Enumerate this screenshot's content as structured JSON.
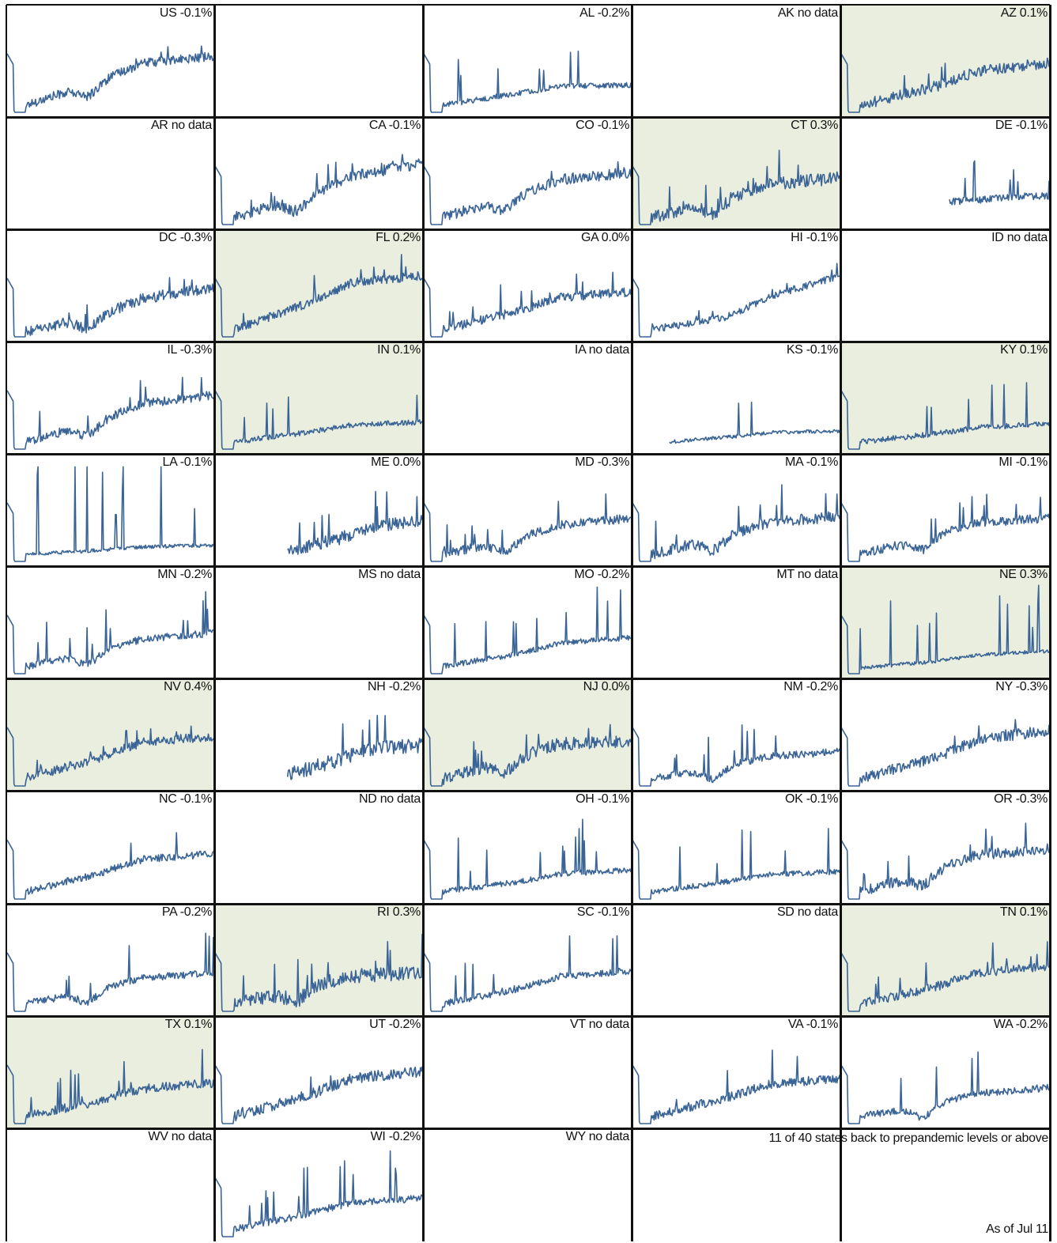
{
  "colors": {
    "line": "#3a6496",
    "highlight": "#eaeedf",
    "grid": "#111111",
    "background": "#ffffff"
  },
  "summary": "11 of 40 states back to prepandemic levels or above",
  "as_of": "As of Jul 11",
  "chart_data": {
    "type": "line",
    "layout": "small-multiples",
    "columns": 5,
    "shape_note": "Each panel is a daily index series; no axes are printed. Panel label shows state and latest change.",
    "panels": [
      {
        "label": "US -0.1%",
        "state": "US",
        "change": -0.1,
        "has_data": true,
        "highlight": false,
        "start": 0.0,
        "drop": 0.08,
        "mid": 0.5,
        "end": 0.62,
        "noise": 0.05,
        "spike": 0.12,
        "dip": true
      },
      {
        "label": "",
        "state": "",
        "change": null,
        "has_data": false,
        "highlight": false
      },
      {
        "label": "AL -0.2%",
        "state": "AL",
        "change": -0.2,
        "has_data": true,
        "highlight": false,
        "start": 0.0,
        "drop": 0.08,
        "mid": 0.28,
        "end": 0.3,
        "noise": 0.03,
        "spike": 0.35,
        "dip": false
      },
      {
        "label": "AK no data",
        "state": "AK",
        "change": null,
        "has_data": false,
        "highlight": false
      },
      {
        "label": "AZ 0.1%",
        "state": "AZ",
        "change": 0.1,
        "has_data": true,
        "highlight": true,
        "start": 0.0,
        "drop": 0.08,
        "mid": 0.4,
        "end": 0.55,
        "noise": 0.06,
        "spike": 0.2,
        "dip": false
      },
      {
        "label": "AR no data",
        "state": "AR",
        "change": null,
        "has_data": false,
        "highlight": false
      },
      {
        "label": "CA -0.1%",
        "state": "CA",
        "change": -0.1,
        "has_data": true,
        "highlight": false,
        "start": 0.0,
        "drop": 0.08,
        "mid": 0.45,
        "end": 0.68,
        "noise": 0.06,
        "spike": 0.15,
        "dip": true
      },
      {
        "label": "CO -0.1%",
        "state": "CO",
        "change": -0.1,
        "has_data": true,
        "highlight": false,
        "start": 0.0,
        "drop": 0.08,
        "mid": 0.45,
        "end": 0.58,
        "noise": 0.06,
        "spike": 0.15,
        "dip": true
      },
      {
        "label": "CT 0.3%",
        "state": "CT",
        "change": 0.3,
        "has_data": true,
        "highlight": true,
        "start": 0.0,
        "drop": 0.08,
        "mid": 0.4,
        "end": 0.52,
        "noise": 0.07,
        "spike": 0.2,
        "dip": true
      },
      {
        "label": "DE -0.1%",
        "state": "DE",
        "change": -0.1,
        "has_data": true,
        "highlight": false,
        "start": 0.52,
        "drop": 0.25,
        "mid": 0.3,
        "end": 0.32,
        "noise": 0.04,
        "spike": 0.3,
        "dip": false
      },
      {
        "label": "DC -0.3%",
        "state": "DC",
        "change": -0.3,
        "has_data": true,
        "highlight": false,
        "start": 0.0,
        "drop": 0.06,
        "mid": 0.35,
        "end": 0.55,
        "noise": 0.06,
        "spike": 0.15,
        "dip": true
      },
      {
        "label": "FL 0.2%",
        "state": "FL",
        "change": 0.2,
        "has_data": true,
        "highlight": true,
        "start": 0.0,
        "drop": 0.08,
        "mid": 0.55,
        "end": 0.68,
        "noise": 0.05,
        "spike": 0.2,
        "dip": false
      },
      {
        "label": "GA 0.0%",
        "state": "GA",
        "change": 0.0,
        "has_data": true,
        "highlight": false,
        "start": 0.0,
        "drop": 0.08,
        "mid": 0.4,
        "end": 0.5,
        "noise": 0.05,
        "spike": 0.25,
        "dip": false
      },
      {
        "label": "HI -0.1%",
        "state": "HI",
        "change": -0.1,
        "has_data": true,
        "highlight": false,
        "start": 0.0,
        "drop": 0.08,
        "mid": 0.3,
        "end": 0.68,
        "noise": 0.04,
        "spike": 0.1,
        "dip": false
      },
      {
        "label": "ID no data",
        "state": "ID",
        "change": null,
        "has_data": false,
        "highlight": false
      },
      {
        "label": "IL -0.3%",
        "state": "IL",
        "change": -0.3,
        "has_data": true,
        "highlight": false,
        "start": 0.0,
        "drop": 0.08,
        "mid": 0.45,
        "end": 0.6,
        "noise": 0.05,
        "spike": 0.2,
        "dip": true
      },
      {
        "label": "IN 0.1%",
        "state": "IN",
        "change": 0.1,
        "has_data": true,
        "highlight": true,
        "start": 0.0,
        "drop": 0.08,
        "mid": 0.25,
        "end": 0.3,
        "noise": 0.03,
        "spike": 0.3,
        "dip": false
      },
      {
        "label": "IA no data",
        "state": "IA",
        "change": null,
        "has_data": false,
        "highlight": false
      },
      {
        "label": "KS -0.1%",
        "state": "KS",
        "change": -0.1,
        "has_data": true,
        "highlight": false,
        "start": 0.18,
        "drop": 0.08,
        "mid": 0.18,
        "end": 0.2,
        "noise": 0.02,
        "spike": 0.5,
        "dip": false
      },
      {
        "label": "KY 0.1%",
        "state": "KY",
        "change": 0.1,
        "has_data": true,
        "highlight": true,
        "start": 0.0,
        "drop": 0.08,
        "mid": 0.22,
        "end": 0.28,
        "noise": 0.03,
        "spike": 0.4,
        "dip": false
      },
      {
        "label": "LA -0.1%",
        "state": "LA",
        "change": -0.1,
        "has_data": true,
        "highlight": false,
        "start": 0.0,
        "drop": 0.08,
        "mid": 0.15,
        "end": 0.18,
        "noise": 0.02,
        "spike": 0.7,
        "dip": false
      },
      {
        "label": "ME 0.0%",
        "state": "ME",
        "change": 0.0,
        "has_data": true,
        "highlight": false,
        "start": 0.35,
        "drop": 0.1,
        "mid": 0.35,
        "end": 0.45,
        "noise": 0.07,
        "spike": 0.3,
        "dip": false
      },
      {
        "label": "MD -0.3%",
        "state": "MD",
        "change": -0.3,
        "has_data": true,
        "highlight": false,
        "start": 0.0,
        "drop": 0.08,
        "mid": 0.35,
        "end": 0.48,
        "noise": 0.05,
        "spike": 0.2,
        "dip": true
      },
      {
        "label": "MA -0.1%",
        "state": "MA",
        "change": -0.1,
        "has_data": true,
        "highlight": false,
        "start": 0.0,
        "drop": 0.08,
        "mid": 0.4,
        "end": 0.5,
        "noise": 0.06,
        "spike": 0.25,
        "dip": true
      },
      {
        "label": "MI -0.1%",
        "state": "MI",
        "change": -0.1,
        "has_data": true,
        "highlight": false,
        "start": 0.0,
        "drop": 0.08,
        "mid": 0.4,
        "end": 0.48,
        "noise": 0.05,
        "spike": 0.2,
        "dip": true
      },
      {
        "label": "MN -0.2%",
        "state": "MN",
        "change": -0.2,
        "has_data": true,
        "highlight": false,
        "start": 0.0,
        "drop": 0.08,
        "mid": 0.35,
        "end": 0.45,
        "noise": 0.04,
        "spike": 0.3,
        "dip": true
      },
      {
        "label": "MS no data",
        "state": "MS",
        "change": null,
        "has_data": false,
        "highlight": false
      },
      {
        "label": "MO -0.2%",
        "state": "MO",
        "change": -0.2,
        "has_data": true,
        "highlight": false,
        "start": 0.0,
        "drop": 0.08,
        "mid": 0.3,
        "end": 0.4,
        "noise": 0.03,
        "spike": 0.4,
        "dip": false
      },
      {
        "label": "MT no data",
        "state": "MT",
        "change": null,
        "has_data": false,
        "highlight": false
      },
      {
        "label": "NE 0.3%",
        "state": "NE",
        "change": 0.3,
        "has_data": true,
        "highlight": true,
        "start": 0.0,
        "drop": 0.06,
        "mid": 0.18,
        "end": 0.25,
        "noise": 0.02,
        "spike": 0.5,
        "dip": false
      },
      {
        "label": "NV 0.4%",
        "state": "NV",
        "change": 0.4,
        "has_data": true,
        "highlight": true,
        "start": 0.0,
        "drop": 0.08,
        "mid": 0.45,
        "end": 0.55,
        "noise": 0.05,
        "spike": 0.15,
        "dip": false
      },
      {
        "label": "NH -0.2%",
        "state": "NH",
        "change": -0.2,
        "has_data": true,
        "highlight": false,
        "start": 0.35,
        "drop": 0.12,
        "mid": 0.4,
        "end": 0.45,
        "noise": 0.08,
        "spike": 0.3,
        "dip": false
      },
      {
        "label": "NJ 0.0%",
        "state": "NJ",
        "change": 0.0,
        "has_data": true,
        "highlight": true,
        "start": 0.0,
        "drop": 0.08,
        "mid": 0.45,
        "end": 0.5,
        "noise": 0.07,
        "spike": 0.25,
        "dip": true
      },
      {
        "label": "NM -0.2%",
        "state": "NM",
        "change": -0.2,
        "has_data": true,
        "highlight": false,
        "start": 0.0,
        "drop": 0.08,
        "mid": 0.3,
        "end": 0.38,
        "noise": 0.04,
        "spike": 0.3,
        "dip": true
      },
      {
        "label": "NY -0.3%",
        "state": "NY",
        "change": -0.3,
        "has_data": true,
        "highlight": false,
        "start": 0.0,
        "drop": 0.08,
        "mid": 0.45,
        "end": 0.62,
        "noise": 0.06,
        "spike": 0.15,
        "dip": false
      },
      {
        "label": "NC -0.1%",
        "state": "NC",
        "change": -0.1,
        "has_data": true,
        "highlight": false,
        "start": 0.0,
        "drop": 0.08,
        "mid": 0.4,
        "end": 0.5,
        "noise": 0.04,
        "spike": 0.3,
        "dip": false
      },
      {
        "label": "ND no data",
        "state": "ND",
        "change": null,
        "has_data": false,
        "highlight": false
      },
      {
        "label": "OH -0.1%",
        "state": "OH",
        "change": -0.1,
        "has_data": true,
        "highlight": false,
        "start": 0.0,
        "drop": 0.08,
        "mid": 0.25,
        "end": 0.32,
        "noise": 0.03,
        "spike": 0.4,
        "dip": false
      },
      {
        "label": "OK -0.1%",
        "state": "OK",
        "change": -0.1,
        "has_data": true,
        "highlight": false,
        "start": 0.0,
        "drop": 0.08,
        "mid": 0.25,
        "end": 0.3,
        "noise": 0.03,
        "spike": 0.4,
        "dip": false
      },
      {
        "label": "OR -0.3%",
        "state": "OR",
        "change": -0.3,
        "has_data": true,
        "highlight": false,
        "start": 0.0,
        "drop": 0.08,
        "mid": 0.45,
        "end": 0.55,
        "noise": 0.06,
        "spike": 0.2,
        "dip": true
      },
      {
        "label": "PA -0.2%",
        "state": "PA",
        "change": -0.2,
        "has_data": true,
        "highlight": false,
        "start": 0.0,
        "drop": 0.08,
        "mid": 0.35,
        "end": 0.42,
        "noise": 0.04,
        "spike": 0.3,
        "dip": true
      },
      {
        "label": "RI 0.3%",
        "state": "RI",
        "change": 0.3,
        "has_data": true,
        "highlight": true,
        "start": 0.0,
        "drop": 0.08,
        "mid": 0.38,
        "end": 0.42,
        "noise": 0.08,
        "spike": 0.3,
        "dip": true
      },
      {
        "label": "SC -0.1%",
        "state": "SC",
        "change": -0.1,
        "has_data": true,
        "highlight": false,
        "start": 0.0,
        "drop": 0.08,
        "mid": 0.35,
        "end": 0.45,
        "noise": 0.04,
        "spike": 0.3,
        "dip": false
      },
      {
        "label": "SD no data",
        "state": "SD",
        "change": null,
        "has_data": false,
        "highlight": false
      },
      {
        "label": "TN 0.1%",
        "state": "TN",
        "change": 0.1,
        "has_data": true,
        "highlight": true,
        "start": 0.0,
        "drop": 0.08,
        "mid": 0.38,
        "end": 0.5,
        "noise": 0.05,
        "spike": 0.2,
        "dip": false
      },
      {
        "label": "TX 0.1%",
        "state": "TX",
        "change": 0.1,
        "has_data": true,
        "highlight": true,
        "start": 0.0,
        "drop": 0.08,
        "mid": 0.35,
        "end": 0.45,
        "noise": 0.05,
        "spike": 0.25,
        "dip": false
      },
      {
        "label": "UT -0.2%",
        "state": "UT",
        "change": -0.2,
        "has_data": true,
        "highlight": false,
        "start": 0.0,
        "drop": 0.08,
        "mid": 0.45,
        "end": 0.58,
        "noise": 0.06,
        "spike": 0.15,
        "dip": false
      },
      {
        "label": "VT no data",
        "state": "VT",
        "change": null,
        "has_data": false,
        "highlight": false
      },
      {
        "label": "VA -0.1%",
        "state": "VA",
        "change": -0.1,
        "has_data": true,
        "highlight": false,
        "start": 0.0,
        "drop": 0.08,
        "mid": 0.4,
        "end": 0.5,
        "noise": 0.05,
        "spike": 0.3,
        "dip": false
      },
      {
        "label": "WA -0.2%",
        "state": "WA",
        "change": -0.2,
        "has_data": true,
        "highlight": false,
        "start": 0.0,
        "drop": 0.08,
        "mid": 0.3,
        "end": 0.4,
        "noise": 0.04,
        "spike": 0.3,
        "dip": true
      },
      {
        "label": "WV no data",
        "state": "WV",
        "change": null,
        "has_data": false,
        "highlight": false
      },
      {
        "label": "WI -0.2%",
        "state": "WI",
        "change": -0.2,
        "has_data": true,
        "highlight": false,
        "start": 0.0,
        "drop": 0.08,
        "mid": 0.35,
        "end": 0.42,
        "noise": 0.04,
        "spike": 0.35,
        "dip": false
      },
      {
        "label": "WY no data",
        "state": "WY",
        "change": null,
        "has_data": false,
        "highlight": false
      }
    ]
  }
}
